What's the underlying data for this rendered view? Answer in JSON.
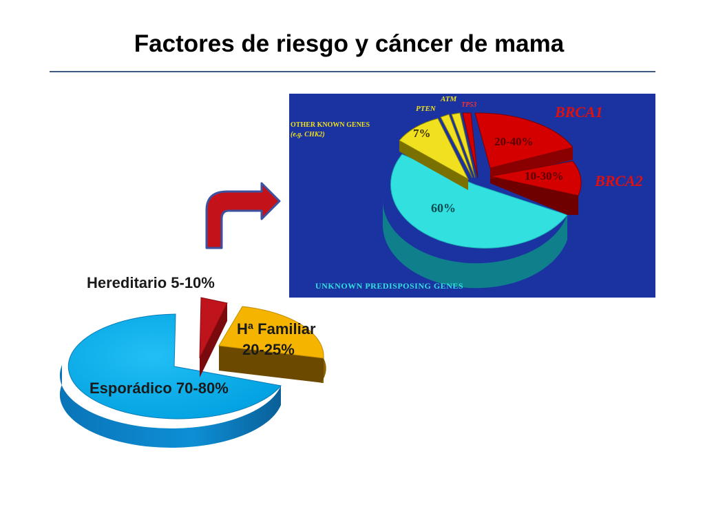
{
  "slide": {
    "title": "Factores de riesgo y cáncer de mama"
  },
  "chart_data": [
    {
      "type": "pie",
      "categories": [
        "Esporádico",
        "Hª Familiar",
        "Hereditario"
      ],
      "labels": [
        "Esporádico 70-80%",
        "Hª Familiar 20-25%",
        "Hereditario 5-10%"
      ],
      "label_lines": {
        "familiar_1": "Hª Familiar",
        "familiar_2": "20-25%"
      },
      "ranges": [
        [
          70,
          80
        ],
        [
          20,
          25
        ],
        [
          5,
          10
        ]
      ],
      "values": [
        75,
        20,
        5
      ],
      "colors": [
        "#00a8e6",
        "#f5b400",
        "#c0141c"
      ],
      "style": "3d-exploded"
    },
    {
      "type": "pie",
      "categories": [
        "Unknown predisposing genes",
        "BRCA1",
        "BRCA2",
        "Other known genes",
        "PTEN",
        "ATM",
        "TP53"
      ],
      "values": [
        60,
        20,
        10,
        7,
        1,
        1,
        1
      ],
      "slice_labels": {
        "unknown": "60%",
        "brca1": "20-40%",
        "brca2": "10-30%",
        "other": "7%"
      },
      "text": {
        "brca1": "BRCA1",
        "brca2": "BRCA2",
        "pten": "PTEN",
        "atm": "ATM",
        "tp53": "TP53",
        "other_1": "OTHER KNOWN GENES",
        "other_2": "(e.g. CHK2)",
        "unknown": "UNKNOWN PREDISPOSING GENES"
      },
      "colors": {
        "unknown": "#33e0e0",
        "brca": "#d40000",
        "other": "#f0e020",
        "background": "#1a33a0",
        "tp53_text": "#ff3030"
      },
      "style": "3d-exploded"
    }
  ]
}
